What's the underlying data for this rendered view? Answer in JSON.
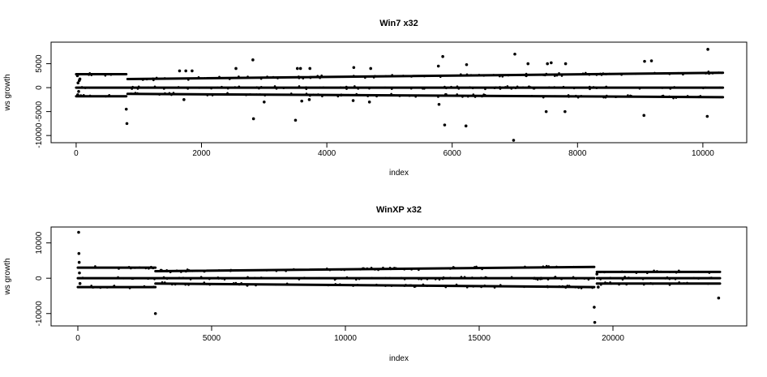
{
  "chart_data": [
    {
      "type": "scatter",
      "title": "Win7 x32",
      "xlabel": "index",
      "ylabel": "ws growth",
      "xlim": [
        -400,
        10700
      ],
      "ylim": [
        -11500,
        9500
      ],
      "x_ticks": [
        0,
        2000,
        4000,
        6000,
        8000,
        10000
      ],
      "x_tick_labels": [
        "0",
        "2000",
        "4000",
        "6000",
        "8000",
        "10000"
      ],
      "y_ticks": [
        -10000,
        -5000,
        0,
        5000
      ],
      "y_tick_labels": [
        "-10000",
        "-5000",
        "0",
        "5000"
      ],
      "grid": false,
      "bands": [
        {
          "x": [
            0,
            10320
          ],
          "y": [
            0,
            0
          ]
        },
        {
          "x": [
            0,
            800
          ],
          "y": [
            2800,
            2800
          ]
        },
        {
          "x": [
            820,
            10320
          ],
          "y": [
            1800,
            3100
          ]
        },
        {
          "x": [
            0,
            800
          ],
          "y": [
            -1800,
            -1800
          ]
        },
        {
          "x": [
            820,
            10320
          ],
          "y": [
            -1300,
            -2000
          ]
        }
      ],
      "points": [
        [
          20,
          2500
        ],
        [
          25,
          -1500
        ],
        [
          30,
          1000
        ],
        [
          40,
          -800
        ],
        [
          50,
          1500
        ],
        [
          60,
          1800
        ],
        [
          800,
          -4500
        ],
        [
          810,
          -7500
        ],
        [
          1650,
          3500
        ],
        [
          1720,
          -2500
        ],
        [
          1750,
          3500
        ],
        [
          1850,
          3500
        ],
        [
          2550,
          4000
        ],
        [
          2820,
          5800
        ],
        [
          2830,
          -6500
        ],
        [
          3000,
          -3000
        ],
        [
          3500,
          -6800
        ],
        [
          3530,
          4000
        ],
        [
          3580,
          4000
        ],
        [
          3600,
          -2800
        ],
        [
          3720,
          -2500
        ],
        [
          3730,
          4000
        ],
        [
          4420,
          -2700
        ],
        [
          4430,
          4200
        ],
        [
          4680,
          -3000
        ],
        [
          4700,
          4000
        ],
        [
          5780,
          4500
        ],
        [
          5790,
          -3500
        ],
        [
          5850,
          6500
        ],
        [
          5880,
          -7800
        ],
        [
          6220,
          -8000
        ],
        [
          6230,
          4800
        ],
        [
          6980,
          -11000
        ],
        [
          7000,
          7000
        ],
        [
          7210,
          5000
        ],
        [
          7500,
          -5000
        ],
        [
          7520,
          5000
        ],
        [
          7580,
          5200
        ],
        [
          7800,
          -5000
        ],
        [
          7810,
          5000
        ],
        [
          9060,
          -5800
        ],
        [
          9070,
          5500
        ],
        [
          9180,
          5600
        ],
        [
          10070,
          -6000
        ],
        [
          10080,
          8000
        ]
      ]
    },
    {
      "type": "scatter",
      "title": "WinXP x32",
      "xlabel": "index",
      "ylabel": "ws growth",
      "xlim": [
        -1000,
        25000
      ],
      "ylim": [
        -13500,
        14500
      ],
      "x_ticks": [
        0,
        5000,
        10000,
        15000,
        20000
      ],
      "x_tick_labels": [
        "0",
        "5000",
        "10000",
        "15000",
        "20000"
      ],
      "y_ticks": [
        -10000,
        0,
        10000
      ],
      "y_tick_labels": [
        "-10000",
        "0",
        "10000"
      ],
      "grid": false,
      "bands": [
        {
          "x": [
            0,
            19300
          ],
          "y": [
            0,
            0
          ]
        },
        {
          "x": [
            0,
            2900
          ],
          "y": [
            3000,
            3000
          ]
        },
        {
          "x": [
            2900,
            19300
          ],
          "y": [
            2000,
            3200
          ]
        },
        {
          "x": [
            0,
            2900
          ],
          "y": [
            -2500,
            -2500
          ]
        },
        {
          "x": [
            2900,
            19300
          ],
          "y": [
            -1500,
            -2500
          ]
        },
        {
          "x": [
            19400,
            24000
          ],
          "y": [
            1800,
            1800
          ]
        },
        {
          "x": [
            19400,
            24000
          ],
          "y": [
            0,
            0
          ]
        },
        {
          "x": [
            19400,
            24000
          ],
          "y": [
            -1500,
            -1500
          ]
        }
      ],
      "points": [
        [
          30,
          13000
        ],
        [
          40,
          7000
        ],
        [
          50,
          4500
        ],
        [
          60,
          1500
        ],
        [
          80,
          -1500
        ],
        [
          2900,
          -10000
        ],
        [
          19300,
          -8200
        ],
        [
          19320,
          -12500
        ],
        [
          23950,
          -5600
        ],
        [
          19400,
          1200
        ],
        [
          19450,
          -2500
        ]
      ]
    }
  ]
}
